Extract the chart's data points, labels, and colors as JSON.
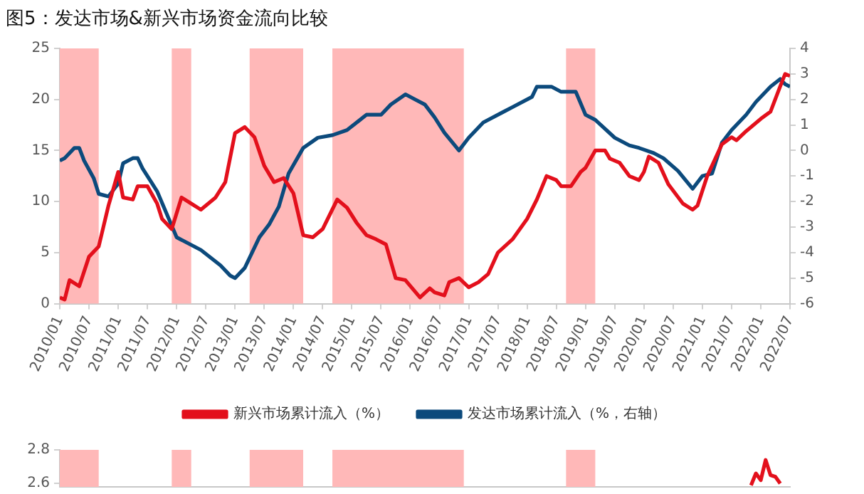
{
  "chart_data": [
    {
      "type": "line",
      "title": "图5：发达市场&新兴市场资金流向比较",
      "xlim": [
        "2010-01",
        "2022-07"
      ],
      "xticks": [
        {
          "value": "2010-01",
          "label": "2010/01"
        },
        {
          "value": "2010-07",
          "label": "2010/07"
        },
        {
          "value": "2011-01",
          "label": "2011/01"
        },
        {
          "value": "2011-07",
          "label": "2011/07"
        },
        {
          "value": "2012-01",
          "label": "2012/01"
        },
        {
          "value": "2012-07",
          "label": "2012/07"
        },
        {
          "value": "2013-01",
          "label": "2013/01"
        },
        {
          "value": "2013-07",
          "label": "2013/07"
        },
        {
          "value": "2014-01",
          "label": "2014/01"
        },
        {
          "value": "2014-07",
          "label": "2014/07"
        },
        {
          "value": "2015-01",
          "label": "2015/01"
        },
        {
          "value": "2015-07",
          "label": "2015/07"
        },
        {
          "value": "2016-01",
          "label": "2016/01"
        },
        {
          "value": "2016-07",
          "label": "2016/07"
        },
        {
          "value": "2017-01",
          "label": "2017/01"
        },
        {
          "value": "2017-07",
          "label": "2017/07"
        },
        {
          "value": "2018-01",
          "label": "2018/01"
        },
        {
          "value": "2018-07",
          "label": "2018/07"
        },
        {
          "value": "2019-01",
          "label": "2019/01"
        },
        {
          "value": "2019-07",
          "label": "2019/07"
        },
        {
          "value": "2020-01",
          "label": "2020/01"
        },
        {
          "value": "2020-07",
          "label": "2020/07"
        },
        {
          "value": "2021-01",
          "label": "2021/01"
        },
        {
          "value": "2021-07",
          "label": "2021/07"
        },
        {
          "value": "2022-01",
          "label": "2022/01"
        },
        {
          "value": "2022-07",
          "label": "2022/07"
        }
      ],
      "ylim": [
        0,
        25
      ],
      "yticks": [
        0,
        5,
        10,
        15,
        20,
        25
      ],
      "y2lim": [
        -6,
        4
      ],
      "y2ticks": [
        -6,
        -5,
        -4,
        -3,
        -2,
        -1,
        0,
        1,
        2,
        3,
        4
      ],
      "grid": false,
      "legend": "bottom",
      "bands": [
        {
          "axis": "x",
          "from": "2010-01",
          "to": "2010-09",
          "color": "#ffb8b8"
        },
        {
          "axis": "x",
          "from": "2011-12",
          "to": "2012-04",
          "color": "#ffb8b8"
        },
        {
          "axis": "x",
          "from": "2013-04",
          "to": "2014-03",
          "color": "#ffb8b8"
        },
        {
          "axis": "x",
          "from": "2014-09",
          "to": "2016-12",
          "color": "#ffb8b8"
        },
        {
          "axis": "x",
          "from": "2018-09",
          "to": "2019-03",
          "color": "#ffb8b8"
        }
      ],
      "series": [
        {
          "name": "新兴市场累计流入（%）",
          "color": "#e3101c",
          "x": [
            "2010-01",
            "2010-02",
            "2010-03",
            "2010-05",
            "2010-07",
            "2010-09",
            "2010-11",
            "2011-01",
            "2011-02",
            "2011-04",
            "2011-05",
            "2011-07",
            "2011-09",
            "2011-10",
            "2011-12",
            "2012-02",
            "2012-04",
            "2012-06",
            "2012-09",
            "2012-11",
            "2013-01",
            "2013-03",
            "2013-05",
            "2013-07",
            "2013-09",
            "2013-11",
            "2014-01",
            "2014-03",
            "2014-05",
            "2014-07",
            "2014-10",
            "2014-12",
            "2015-02",
            "2015-04",
            "2015-06",
            "2015-08",
            "2015-10",
            "2015-12",
            "2016-03",
            "2016-05",
            "2016-06",
            "2016-08",
            "2016-09",
            "2016-11",
            "2017-01",
            "2017-03",
            "2017-05",
            "2017-07",
            "2017-10",
            "2018-01",
            "2018-03",
            "2018-05",
            "2018-07",
            "2018-08",
            "2018-10",
            "2018-12",
            "2019-01",
            "2019-03",
            "2019-05",
            "2019-06",
            "2019-08",
            "2019-10",
            "2019-12",
            "2020-01",
            "2020-02",
            "2020-04",
            "2020-06",
            "2020-09",
            "2020-11",
            "2020-12",
            "2021-02",
            "2021-05",
            "2021-07",
            "2021-08",
            "2021-10",
            "2022-01",
            "2022-03",
            "2022-05",
            "2022-06",
            "2022-07"
          ],
          "values": [
            0.6,
            0.4,
            2.3,
            1.7,
            4.6,
            5.6,
            9.6,
            12.9,
            10.4,
            10.2,
            11.5,
            11.5,
            9.8,
            8.3,
            7.3,
            10.4,
            9.8,
            9.2,
            10.4,
            11.9,
            16.7,
            17.3,
            16.3,
            13.5,
            11.9,
            12.3,
            10.8,
            6.7,
            6.5,
            7.3,
            10.2,
            9.4,
            7.9,
            6.7,
            6.3,
            5.8,
            2.5,
            2.3,
            0.6,
            1.5,
            1.1,
            0.8,
            2.1,
            2.5,
            1.6,
            2.1,
            2.9,
            5.0,
            6.3,
            8.3,
            10.2,
            12.5,
            12.1,
            11.5,
            11.5,
            12.9,
            13.3,
            15.0,
            15.0,
            14.2,
            13.8,
            12.5,
            12.1,
            12.9,
            14.4,
            13.8,
            11.7,
            9.8,
            9.2,
            9.6,
            12.5,
            15.6,
            16.3,
            16.0,
            16.9,
            18.1,
            18.8,
            21.3,
            22.5,
            22.3
          ]
        },
        {
          "name": "发达市场累计流入（%，右轴）",
          "color": "#0c4a7c",
          "axis": "y2",
          "x": [
            "2010-01",
            "2010-02",
            "2010-04",
            "2010-05",
            "2010-06",
            "2010-08",
            "2010-09",
            "2010-11",
            "2011-01",
            "2011-02",
            "2011-04",
            "2011-05",
            "2011-06",
            "2011-09",
            "2011-11",
            "2012-01",
            "2012-03",
            "2012-06",
            "2012-08",
            "2012-10",
            "2012-12",
            "2013-01",
            "2013-03",
            "2013-06",
            "2013-08",
            "2013-10",
            "2013-12",
            "2014-03",
            "2014-06",
            "2014-09",
            "2014-12",
            "2015-04",
            "2015-07",
            "2015-09",
            "2015-12",
            "2016-02",
            "2016-04",
            "2016-06",
            "2016-08",
            "2016-11",
            "2017-01",
            "2017-04",
            "2017-08",
            "2017-10",
            "2018-02",
            "2018-03",
            "2018-06",
            "2018-08",
            "2018-11",
            "2019-01",
            "2019-03",
            "2019-07",
            "2019-10",
            "2019-12",
            "2020-03",
            "2020-05",
            "2020-08",
            "2020-11",
            "2021-01",
            "2021-03",
            "2021-05",
            "2021-07",
            "2021-10",
            "2021-12",
            "2022-03",
            "2022-05",
            "2022-06",
            "2022-07"
          ],
          "values": [
            -0.4,
            -0.3,
            0.1,
            0.1,
            -0.4,
            -1.1,
            -1.7,
            -1.8,
            -1.3,
            -0.5,
            -0.3,
            -0.3,
            -0.7,
            -1.6,
            -2.5,
            -3.4,
            -3.6,
            -3.9,
            -4.2,
            -4.5,
            -4.9,
            -5.0,
            -4.6,
            -3.4,
            -2.9,
            -2.2,
            -0.9,
            0.1,
            0.5,
            0.6,
            0.8,
            1.4,
            1.4,
            1.8,
            2.2,
            2.0,
            1.8,
            1.3,
            0.7,
            0.0,
            0.5,
            1.1,
            1.5,
            1.7,
            2.1,
            2.5,
            2.5,
            2.3,
            2.3,
            1.4,
            1.2,
            0.5,
            0.2,
            0.1,
            -0.1,
            -0.3,
            -0.8,
            -1.5,
            -1.0,
            -0.9,
            0.3,
            0.8,
            1.4,
            1.9,
            2.5,
            2.8,
            2.6,
            2.5
          ]
        }
      ]
    },
    {
      "type": "line",
      "xlim": [
        "2010-01",
        "2022-07"
      ],
      "ylim": [
        2.58,
        2.8
      ],
      "yticks": [
        2.6,
        2.8
      ],
      "grid": false,
      "tick_labels": "y",
      "bands": [
        {
          "axis": "x",
          "from": "2010-01",
          "to": "2010-09",
          "color": "#ffb8b8"
        },
        {
          "axis": "x",
          "from": "2011-12",
          "to": "2012-04",
          "color": "#ffb8b8"
        },
        {
          "axis": "x",
          "from": "2013-04",
          "to": "2014-03",
          "color": "#ffb8b8"
        },
        {
          "axis": "x",
          "from": "2014-09",
          "to": "2016-12",
          "color": "#ffb8b8"
        },
        {
          "axis": "x",
          "from": "2018-09",
          "to": "2019-03",
          "color": "#ffb8b8"
        }
      ],
      "series": [
        {
          "color": "#e3101c",
          "x": [
            "2021-11",
            "2021-12",
            "2022-01",
            "2022-02",
            "2022-03",
            "2022-04",
            "2022-05"
          ],
          "values": [
            2.59,
            2.66,
            2.62,
            2.74,
            2.65,
            2.64,
            2.6
          ]
        }
      ]
    }
  ]
}
